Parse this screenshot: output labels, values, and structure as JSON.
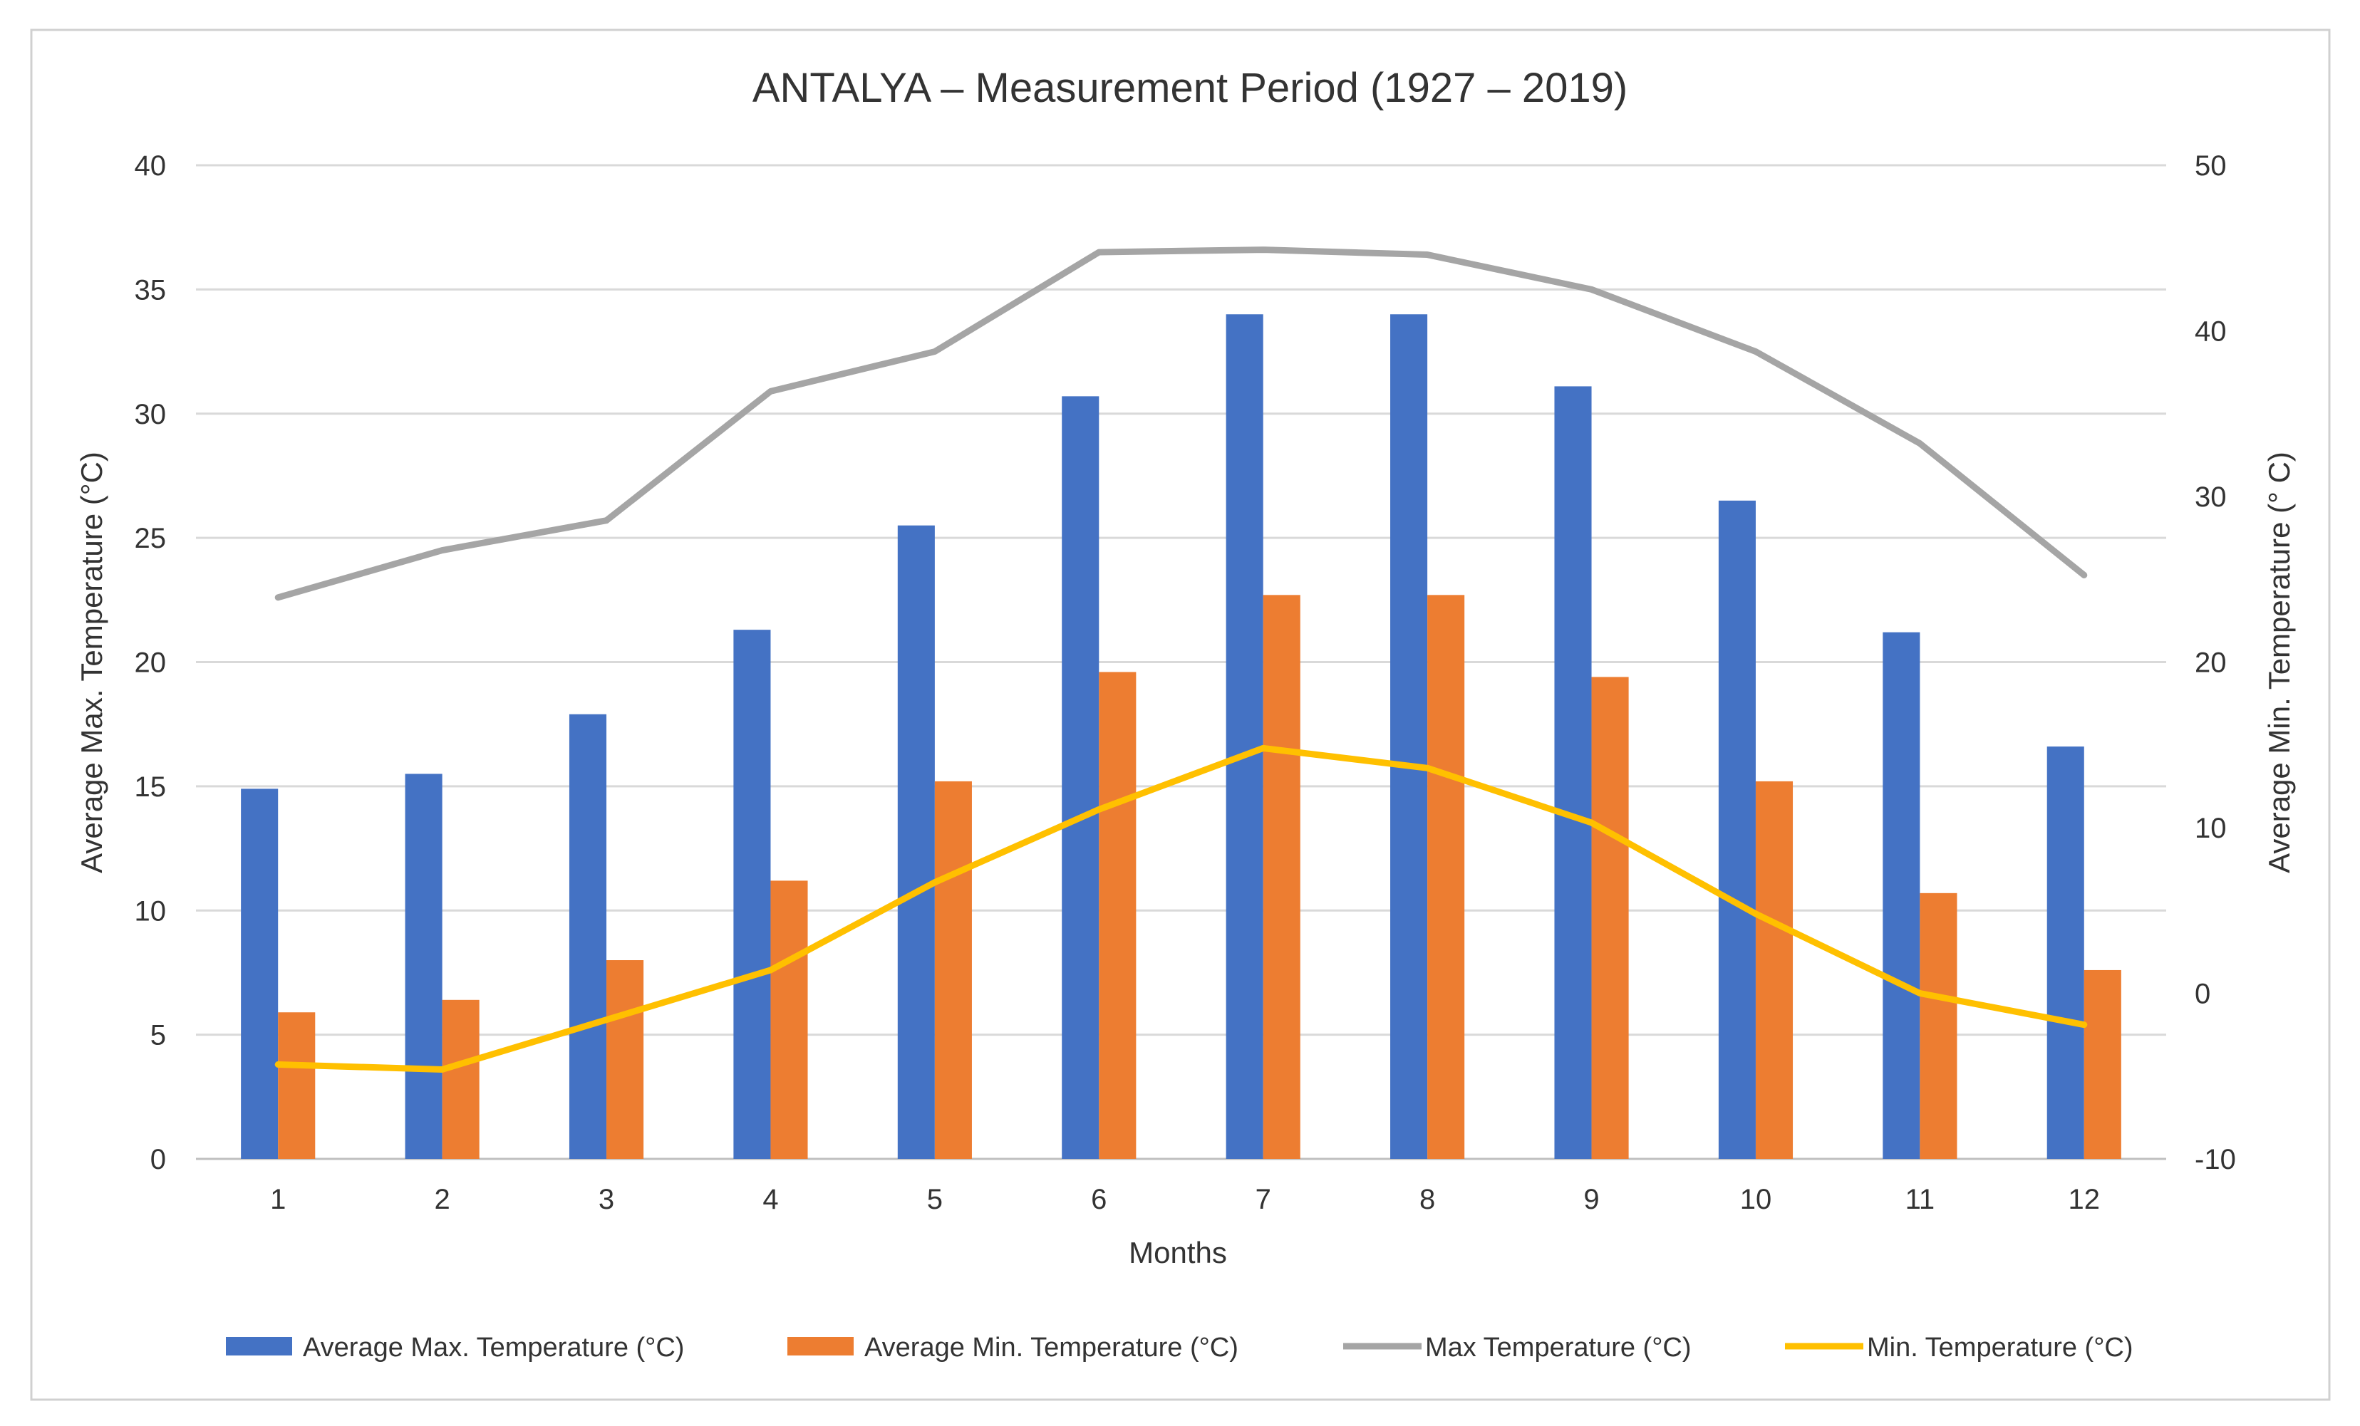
{
  "chart_data": {
    "type": "bar",
    "title": "ANTALYA – Measurement Period (1927 – 2019)",
    "xlabel": "Months",
    "ylabel": "Average Max. Temperature (°C)",
    "y2label": "Average Min. Temperature (° C)",
    "categories": [
      "1",
      "2",
      "3",
      "4",
      "5",
      "6",
      "7",
      "8",
      "9",
      "10",
      "11",
      "12"
    ],
    "ylim": [
      0,
      40
    ],
    "y2lim": [
      -10,
      50
    ],
    "yticks": [
      "0",
      "5",
      "10",
      "15",
      "20",
      "25",
      "30",
      "35",
      "40"
    ],
    "y2ticks": [
      "-10",
      "0",
      "10",
      "20",
      "30",
      "40",
      "50"
    ],
    "grid": true,
    "legend": "bottom",
    "series": [
      {
        "name": "Average Max. Temperature (°C)",
        "type": "bar",
        "axis": "left",
        "color": "#4472C4",
        "values": [
          14.9,
          15.5,
          17.9,
          21.3,
          25.5,
          30.7,
          34.0,
          34.0,
          31.1,
          26.5,
          21.2,
          16.6
        ]
      },
      {
        "name": "Average Min. Temperature (°C)",
        "type": "bar",
        "axis": "left",
        "color": "#ED7D31",
        "values": [
          5.9,
          6.4,
          8.0,
          11.2,
          15.2,
          19.6,
          22.7,
          22.7,
          19.4,
          15.2,
          10.7,
          7.6
        ]
      },
      {
        "name": "Max Temperature (°C)",
        "type": "line",
        "axis": "left",
        "color": "#A5A5A5",
        "values": [
          22.6,
          24.5,
          25.7,
          30.9,
          32.5,
          36.5,
          36.6,
          36.4,
          35.0,
          32.5,
          28.8,
          23.5
        ]
      },
      {
        "name": "Min. Temperature (°C)",
        "type": "line",
        "axis": "right",
        "color": "#FFC000",
        "values": [
          -4.3,
          -4.6,
          -1.6,
          1.4,
          6.7,
          11.1,
          14.8,
          13.6,
          10.3,
          4.8,
          0.0,
          -1.9
        ]
      }
    ]
  }
}
